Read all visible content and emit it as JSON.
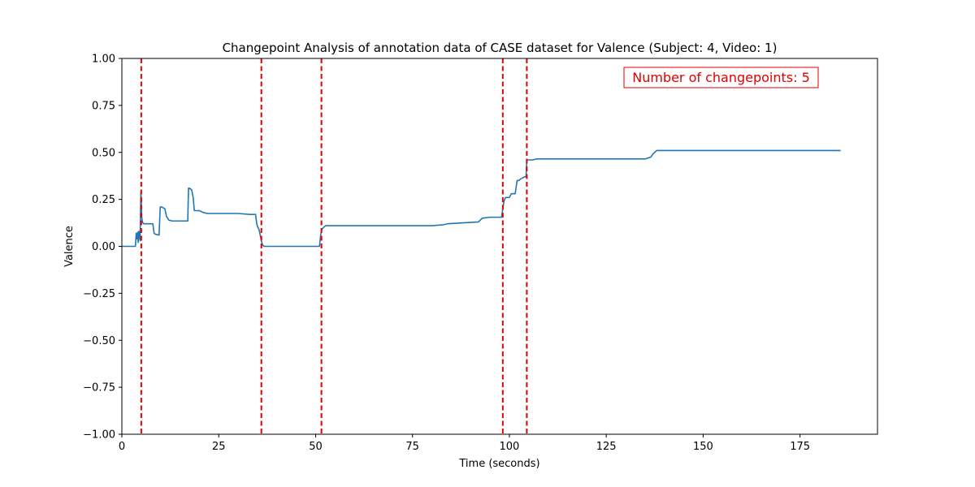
{
  "chart_data": {
    "type": "line",
    "title": "Changepoint Analysis of annotation data of CASE dataset for Valence (Subject: 4, Video: 1)",
    "xlabel": "Time (seconds)",
    "ylabel": "Valence",
    "xlim": [
      0,
      195
    ],
    "ylim": [
      -1.0,
      1.0
    ],
    "x_ticks": [
      0,
      25,
      50,
      75,
      100,
      125,
      150,
      175
    ],
    "x_tick_labels": [
      "0",
      "25",
      "50",
      "75",
      "100",
      "125",
      "150",
      "175"
    ],
    "y_ticks": [
      -1.0,
      -0.75,
      -0.5,
      -0.25,
      0.0,
      0.25,
      0.5,
      0.75,
      1.0
    ],
    "y_tick_labels": [
      "−1.00",
      "−0.75",
      "−0.50",
      "−0.25",
      "0.00",
      "0.25",
      "0.50",
      "0.75",
      "1.00"
    ],
    "grid": false,
    "series": [
      {
        "color": "#1f77b4",
        "x": [
          0,
          3.5,
          3.7,
          3.9,
          4.1,
          4.2,
          4.4,
          4.7,
          4.9,
          5.0,
          5.1,
          5.3,
          5.6,
          6.2,
          7.0,
          8.0,
          8.3,
          8.6,
          9.6,
          9.9,
          10.2,
          11.1,
          11.5,
          12.1,
          13.0,
          15.0,
          17.0,
          17.2,
          17.4,
          18.0,
          18.4,
          18.7,
          20.0,
          21.0,
          22.0,
          25.0,
          30.0,
          33.0,
          34.5,
          34.8,
          35.1,
          35.4,
          35.7,
          36.1,
          36.4,
          36.7,
          37.0,
          37.3,
          38.0,
          40.0,
          45.0,
          51.0,
          51.3,
          51.6,
          52.0,
          52.6,
          53.3,
          55.0,
          60.0,
          70.0,
          80.0,
          83.0,
          84.0,
          88.0,
          92.0,
          93.0,
          95.0,
          98.0,
          98.3,
          98.6,
          99.0,
          100.0,
          100.5,
          101.5,
          102.0,
          102.4,
          103.0,
          104.0,
          104.3,
          104.5,
          104.6,
          106.0,
          107.0,
          120.0,
          130.0,
          135.0,
          136.5,
          137.0,
          137.5,
          138.0,
          139.0,
          150.0,
          170.0,
          185.5
        ],
        "y": [
          0.0,
          0.0,
          0.07,
          0.04,
          0.075,
          0.02,
          0.08,
          0.03,
          0.29,
          0.25,
          0.16,
          0.13,
          0.12,
          0.12,
          0.12,
          0.12,
          0.07,
          0.065,
          0.06,
          0.21,
          0.21,
          0.2,
          0.16,
          0.14,
          0.135,
          0.135,
          0.135,
          0.31,
          0.31,
          0.3,
          0.26,
          0.19,
          0.19,
          0.18,
          0.175,
          0.175,
          0.175,
          0.17,
          0.17,
          0.12,
          0.1,
          0.09,
          0.06,
          0.02,
          0.005,
          0.0,
          0.0,
          0.0,
          0.0,
          0.0,
          0.0,
          0.0,
          0.06,
          0.09,
          0.1,
          0.11,
          0.11,
          0.11,
          0.11,
          0.11,
          0.11,
          0.115,
          0.12,
          0.125,
          0.13,
          0.15,
          0.155,
          0.155,
          0.2,
          0.24,
          0.26,
          0.26,
          0.28,
          0.28,
          0.35,
          0.35,
          0.36,
          0.37,
          0.37,
          0.46,
          0.46,
          0.46,
          0.465,
          0.465,
          0.465,
          0.465,
          0.475,
          0.49,
          0.5,
          0.51,
          0.51,
          0.51,
          0.51,
          0.51
        ]
      }
    ],
    "changepoints": [
      5.0,
      36.0,
      51.5,
      98.3,
      104.5
    ],
    "changepoint_color": "#e00000",
    "annotation": {
      "text": "Number of changepoints: 5",
      "color": "#e00000",
      "placement": "top-right"
    }
  }
}
